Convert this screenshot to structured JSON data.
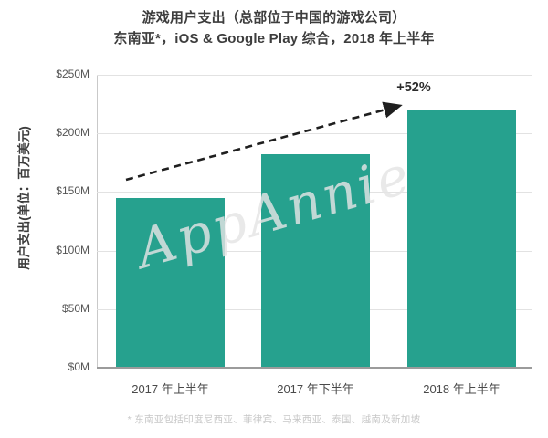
{
  "colors": {
    "bar": "#26A18E",
    "grid": "#E2E2E2",
    "baseline": "#9B9B9B",
    "axis": "#C9C9C9",
    "arrow": "#1F1F1F",
    "title_text": "#3D3D3D",
    "tick_text": "#555555",
    "footnote_text": "#C8C8C8"
  },
  "watermark": "AppAnnie",
  "chart_data": {
    "type": "bar",
    "title": "游戏用户支出（总部位于中国的游戏公司）",
    "subtitle": "东南亚*，iOS & Google Play 综合，2018 年上半年",
    "categories": [
      "2017 年上半年",
      "2017 年下半年",
      "2018 年上半年"
    ],
    "values": [
      145,
      182,
      220
    ],
    "unit": "USD millions",
    "xlabel": "",
    "ylabel": "用户支出(单位：百万美元)",
    "ylim": [
      0,
      250
    ],
    "yticks": [
      {
        "value": 0,
        "label": "$0M"
      },
      {
        "value": 50,
        "label": "$50M"
      },
      {
        "value": 100,
        "label": "$100M"
      },
      {
        "value": 150,
        "label": "$150M"
      },
      {
        "value": 200,
        "label": "$200M"
      },
      {
        "value": 250,
        "label": "$250M"
      }
    ],
    "grid": "horizontal",
    "legend": "none",
    "annotation": {
      "label": "+52%",
      "meaning": "growth from 2017 H1 (145) to 2018 H1 (220)",
      "style": "dashed-arrow"
    },
    "footnote": "* 东南亚包括印度尼西亚、菲律宾、马来西亚、泰国、越南及新加坡"
  }
}
